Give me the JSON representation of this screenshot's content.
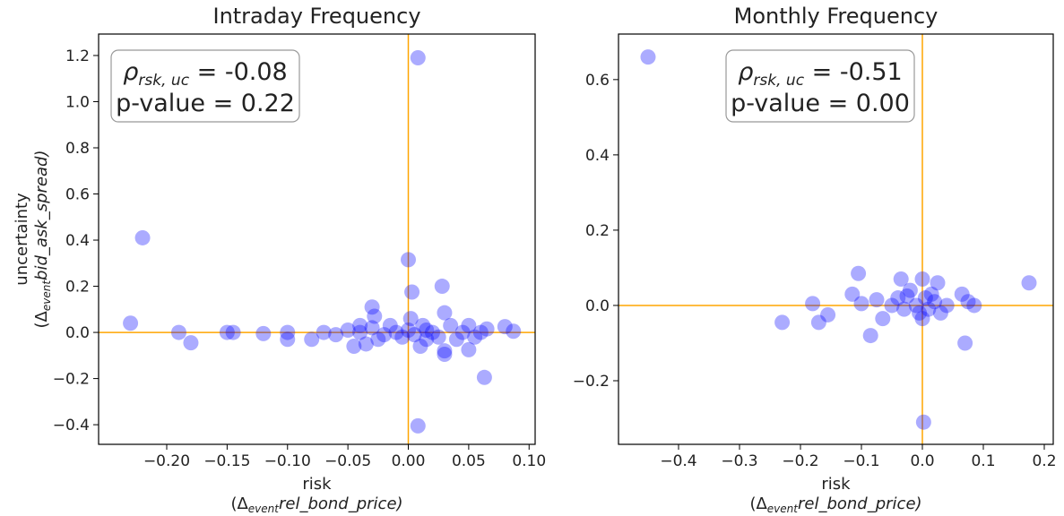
{
  "chart_data": [
    {
      "type": "scatter",
      "title": "Intraday Frequency",
      "xlabel": "risk",
      "xlabel_parts": [
        "(Δ",
        "event",
        "rel_bond_price)"
      ],
      "ylabel": "uncertainty",
      "ylabel_parts": [
        "(Δ",
        "event",
        "bid_ask_spread)"
      ],
      "annotation": {
        "symbol": "ρ",
        "subscript": "rsk, uc",
        "stat": " = -0.08",
        "pvalue": "p-value = 0.22"
      },
      "color": "#0000ff",
      "alpha": 0.33,
      "zero_lines": true,
      "zero_line_color": "#ffa500",
      "xlim": [
        -0.2564,
        0.105
      ],
      "ylim": [
        -0.485,
        1.293
      ],
      "xticks": [
        {
          "value": -0.2,
          "label": "−0.20"
        },
        {
          "value": -0.15,
          "label": "−0.15"
        },
        {
          "value": -0.1,
          "label": "−0.10"
        },
        {
          "value": -0.05,
          "label": "−0.05"
        },
        {
          "value": 0,
          "label": "0.00"
        },
        {
          "value": 0.05,
          "label": "0.05"
        },
        {
          "value": 0.1,
          "label": "0.10"
        }
      ],
      "yticks": [
        {
          "value": -0.4,
          "label": "−0.4"
        },
        {
          "value": -0.2,
          "label": "−0.2"
        },
        {
          "value": 0,
          "label": "0.0"
        },
        {
          "value": 0.2,
          "label": "0.2"
        },
        {
          "value": 0.4,
          "label": "0.4"
        },
        {
          "value": 0.6,
          "label": "0.6"
        },
        {
          "value": 0.8,
          "label": "0.8"
        },
        {
          "value": 1.0,
          "label": "1.0"
        },
        {
          "value": 1.2,
          "label": "1.2"
        }
      ],
      "x": [
        -0.23,
        -0.22,
        -0.19,
        -0.18,
        -0.15,
        -0.145,
        -0.12,
        -0.1,
        -0.1,
        -0.08,
        -0.07,
        -0.06,
        -0.05,
        -0.045,
        -0.04,
        -0.035,
        -0.03,
        -0.03,
        -0.028,
        -0.02,
        -0.015,
        -0.01,
        -0.005,
        0,
        0.002,
        0.005,
        0,
        0.003,
        0.008,
        0.01,
        0.012,
        0.015,
        0.02,
        0.025,
        0.028,
        0.03,
        0.03,
        0.03,
        0.035,
        0.04,
        0.045,
        0.05,
        0.05,
        0.055,
        0.06,
        0.063,
        0.065,
        0.08,
        0.087,
        0.008,
        -0.04,
        -0.025,
        0.015
      ],
      "y": [
        0.04,
        0.41,
        0.0,
        -0.045,
        0.0,
        0.0,
        -0.005,
        -0.03,
        0.0,
        -0.03,
        0.0,
        -0.01,
        0.01,
        -0.06,
        0.0,
        -0.05,
        0.02,
        0.11,
        0.07,
        -0.01,
        0.03,
        0.0,
        -0.02,
        0.01,
        0.06,
        -0.01,
        0.315,
        0.175,
        1.19,
        -0.06,
        0.03,
        -0.03,
        0.0,
        -0.02,
        0.2,
        0.085,
        -0.08,
        -0.095,
        0.03,
        -0.03,
        0.0,
        -0.075,
        0.03,
        -0.02,
        0.0,
        -0.195,
        0.015,
        0.025,
        0.005,
        -0.405,
        0.03,
        -0.03,
        0.01
      ]
    },
    {
      "type": "scatter",
      "title": "Monthly Frequency",
      "xlabel": "risk",
      "xlabel_parts": [
        "(Δ",
        "event",
        "rel_bond_price)"
      ],
      "annotation": {
        "symbol": "ρ",
        "subscript": "rsk, uc",
        "stat": " = -0.51",
        "pvalue": "p-value = 0.00"
      },
      "color": "#0000ff",
      "alpha": 0.33,
      "zero_lines": true,
      "zero_line_color": "#ffa500",
      "xlim": [
        -0.4985,
        0.2147
      ],
      "ylim": [
        -0.369,
        0.721
      ],
      "xticks": [
        {
          "value": -0.4,
          "label": "−0.4"
        },
        {
          "value": -0.3,
          "label": "−0.3"
        },
        {
          "value": -0.2,
          "label": "−0.2"
        },
        {
          "value": -0.1,
          "label": "−0.1"
        },
        {
          "value": 0,
          "label": "0.0"
        },
        {
          "value": 0.1,
          "label": "0.1"
        },
        {
          "value": 0.2,
          "label": "0.2"
        }
      ],
      "yticks": [
        {
          "value": -0.2,
          "label": "−0.2"
        },
        {
          "value": 0,
          "label": "0.0"
        },
        {
          "value": 0.2,
          "label": "0.2"
        },
        {
          "value": 0.4,
          "label": "0.4"
        },
        {
          "value": 0.6,
          "label": "0.6"
        }
      ],
      "x": [
        -0.45,
        -0.23,
        -0.18,
        -0.17,
        -0.155,
        -0.115,
        -0.105,
        -0.1,
        -0.085,
        -0.075,
        -0.065,
        -0.05,
        -0.04,
        -0.035,
        -0.03,
        -0.02,
        -0.01,
        0,
        0,
        0.002,
        0.005,
        0.01,
        0.02,
        0.025,
        0.03,
        0.04,
        0.065,
        0.07,
        0.075,
        0.085,
        0.175,
        -0.025,
        0.015,
        -0.005
      ],
      "y": [
        0.66,
        -0.045,
        0.005,
        -0.045,
        -0.025,
        0.03,
        0.085,
        0.005,
        -0.08,
        0.015,
        -0.035,
        0.0,
        0.02,
        0.07,
        -0.01,
        0.04,
        0.0,
        0.07,
        -0.035,
        -0.31,
        0.02,
        -0.01,
        0.01,
        0.06,
        -0.02,
        0.0,
        0.03,
        -0.1,
        0.01,
        0.0,
        0.06,
        0.025,
        0.03,
        -0.02
      ]
    }
  ]
}
